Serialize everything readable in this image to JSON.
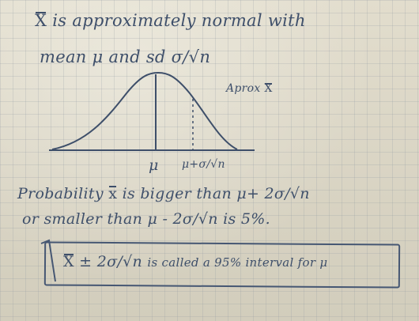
{
  "line1": {
    "xbar": "X",
    "text": "is approximately normal with"
  },
  "line2": {
    "text": "mean μ and sd σ/√n"
  },
  "curve_label": {
    "text": "Aprox",
    "xbar": "X"
  },
  "axis": {
    "mu": "μ",
    "mu_plus_sigma": "μ+σ/√n"
  },
  "line3": {
    "pre": "Probability",
    "xbar": "x",
    "post": "is bigger than μ+ 2σ/√n"
  },
  "line4": {
    "text": "or smaller than μ - 2σ/√n  is 5%."
  },
  "boxed": {
    "xbar": "X",
    "pm": "± 2σ/√n",
    "text": "is called a 95% interval for μ"
  }
}
